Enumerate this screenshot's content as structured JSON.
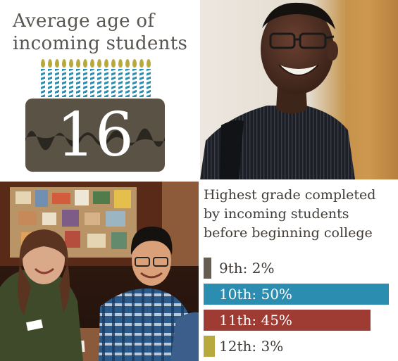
{
  "age": {
    "title_line1": "Average age of",
    "title_line2": "incoming students",
    "value": "16",
    "candle_count": 16,
    "candle_color": "#2b8db0",
    "flame_color": "#b7a93e",
    "cake_color": "#595245"
  },
  "chart_data": {
    "type": "bar",
    "title": "Highest grade completed by incoming students before beginning college",
    "title_lines": [
      "Highest grade completed",
      "by incoming students",
      "before beginning college"
    ],
    "categories": [
      "9th",
      "10th",
      "11th",
      "12th"
    ],
    "values": [
      2,
      50,
      45,
      3
    ],
    "unit": "%",
    "labels": [
      "9th: 2%",
      "10th: 50%",
      "11th: 45%",
      "12th: 3%"
    ],
    "colors": [
      "#655d52",
      "#2b8db0",
      "#9e3b33",
      "#b7a93e"
    ],
    "label_colors": [
      "#403b36",
      "#ffffff",
      "#ffffff",
      "#403b36"
    ],
    "orientation": "horizontal",
    "xlim": [
      0,
      50
    ]
  }
}
